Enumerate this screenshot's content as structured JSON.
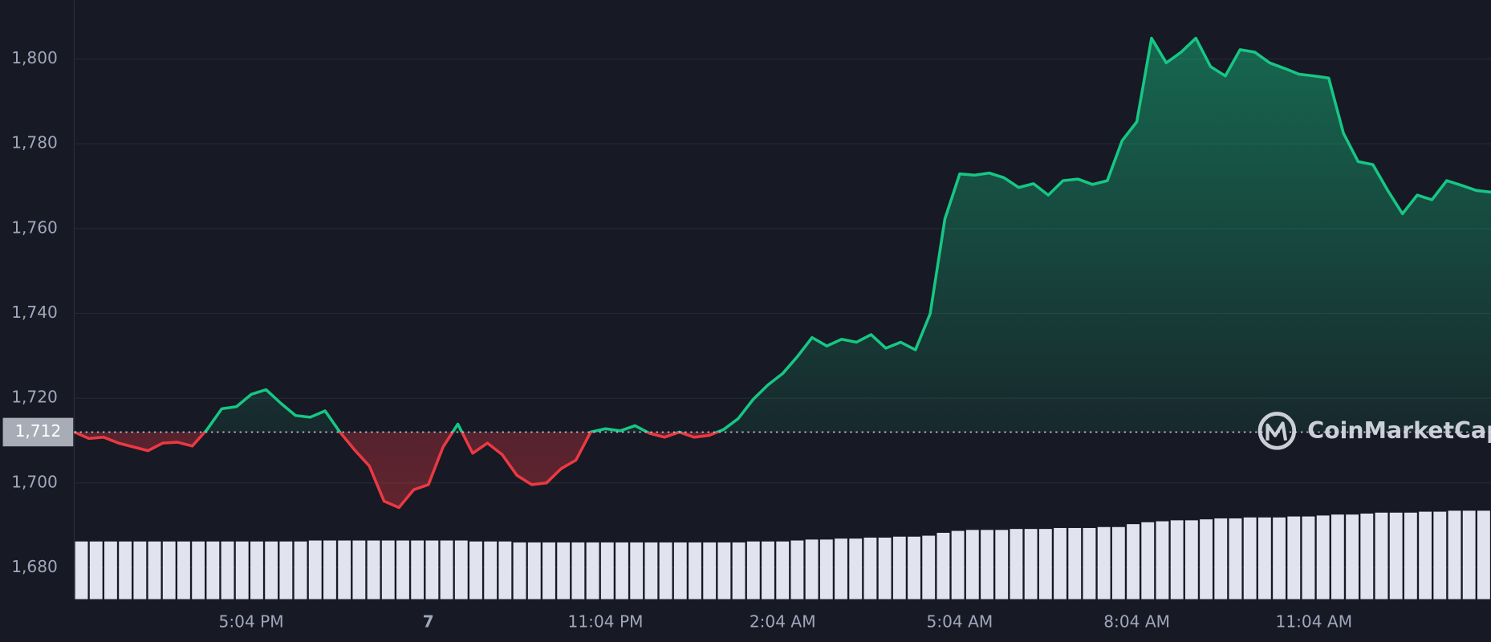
{
  "chart_data": {
    "type": "line",
    "categories": [
      null,
      null,
      null,
      null,
      null,
      null,
      null,
      null,
      null,
      null,
      null,
      null,
      "5:04 PM",
      null,
      null,
      null,
      null,
      null,
      null,
      null,
      null,
      null,
      null,
      null,
      "7",
      null,
      null,
      null,
      null,
      null,
      null,
      null,
      null,
      null,
      null,
      null,
      "11:04 PM",
      null,
      null,
      null,
      null,
      null,
      null,
      null,
      null,
      null,
      null,
      null,
      "2:04 AM",
      null,
      null,
      null,
      null,
      null,
      null,
      null,
      null,
      null,
      null,
      null,
      "5:04 AM",
      null,
      null,
      null,
      null,
      null,
      null,
      null,
      null,
      null,
      null,
      null,
      "8:04 AM",
      null,
      null,
      null,
      null,
      null,
      null,
      null,
      null,
      null,
      null,
      null,
      "11:04 AM",
      null,
      null,
      null,
      null,
      null,
      null,
      null,
      null,
      null,
      null,
      null,
      null
    ],
    "values": [
      1712,
      1710.5,
      1710.8,
      1709.4,
      1708.5,
      1707.6,
      1709.4,
      1709.6,
      1708.7,
      1712.6,
      1717.5,
      1718,
      1720.9,
      1722,
      1718.8,
      1715.9,
      1715.5,
      1717,
      1712,
      1707.8,
      1704,
      1695.7,
      1694.2,
      1698.4,
      1699.6,
      1708.5,
      1713.9,
      1707,
      1709.4,
      1706.7,
      1701.8,
      1699.6,
      1700,
      1703.4,
      1705.4,
      1712,
      1712.8,
      1712.3,
      1713.5,
      1711.7,
      1710.8,
      1712,
      1710.8,
      1711.2,
      1712.6,
      1715.2,
      1719.7,
      1723.1,
      1725.8,
      1729.8,
      1734.3,
      1732.3,
      1733.9,
      1733.2,
      1735,
      1731.8,
      1733.2,
      1731.4,
      1739.9,
      1762.3,
      1772.9,
      1772.6,
      1773.1,
      1772,
      1769.7,
      1770.6,
      1767.9,
      1771.3,
      1771.7,
      1770.4,
      1771.3,
      1780.7,
      1785.2,
      1804.9,
      1799.1,
      1801.6,
      1804.9,
      1798.2,
      1796,
      1802.2,
      1801.6,
      1799.1,
      1797.8,
      1796.4,
      1796,
      1795.5,
      1782.5,
      1775.8,
      1775.1,
      1769,
      1763.5,
      1767.9,
      1766.8,
      1771.3,
      1770.2,
      1769,
      1768.6
    ],
    "volume": [
      60,
      60,
      60,
      60,
      60,
      60,
      60,
      60,
      60,
      60,
      60,
      60,
      60,
      60,
      60,
      60,
      61,
      61,
      61,
      61,
      61,
      61,
      61,
      61,
      61,
      61,
      61,
      60,
      60,
      60,
      59,
      59,
      59,
      59,
      59,
      59,
      59,
      59,
      59,
      59,
      59,
      59,
      59,
      59,
      59,
      59,
      60,
      60,
      60,
      61,
      62,
      62,
      63,
      63,
      64,
      64,
      65,
      65,
      66,
      69,
      71,
      72,
      72,
      72,
      73,
      73,
      73,
      74,
      74,
      74,
      75,
      75,
      78,
      80,
      81,
      82,
      82,
      83,
      84,
      84,
      85,
      85,
      85,
      86,
      86,
      87,
      88,
      88,
      89,
      90,
      90,
      90,
      91,
      91,
      92,
      92,
      92
    ],
    "color_up": "#16c784",
    "color_down": "#ea3943",
    "volume_color": "#e1e4ee",
    "baseline": {
      "value": 1712,
      "label": "1,712"
    },
    "ylim": [
      1672.6,
      1813.9
    ],
    "yticks": [
      {
        "value": 1680,
        "label": "1,680"
      },
      {
        "value": 1700,
        "label": "1,700"
      },
      {
        "value": 1720,
        "label": "1,720"
      },
      {
        "value": 1740,
        "label": "1,740"
      },
      {
        "value": 1760,
        "label": "1,760"
      },
      {
        "value": 1780,
        "label": "1,780"
      },
      {
        "value": 1800,
        "label": "1,800"
      }
    ],
    "grid": true,
    "watermark": "CoinMarketCap"
  }
}
